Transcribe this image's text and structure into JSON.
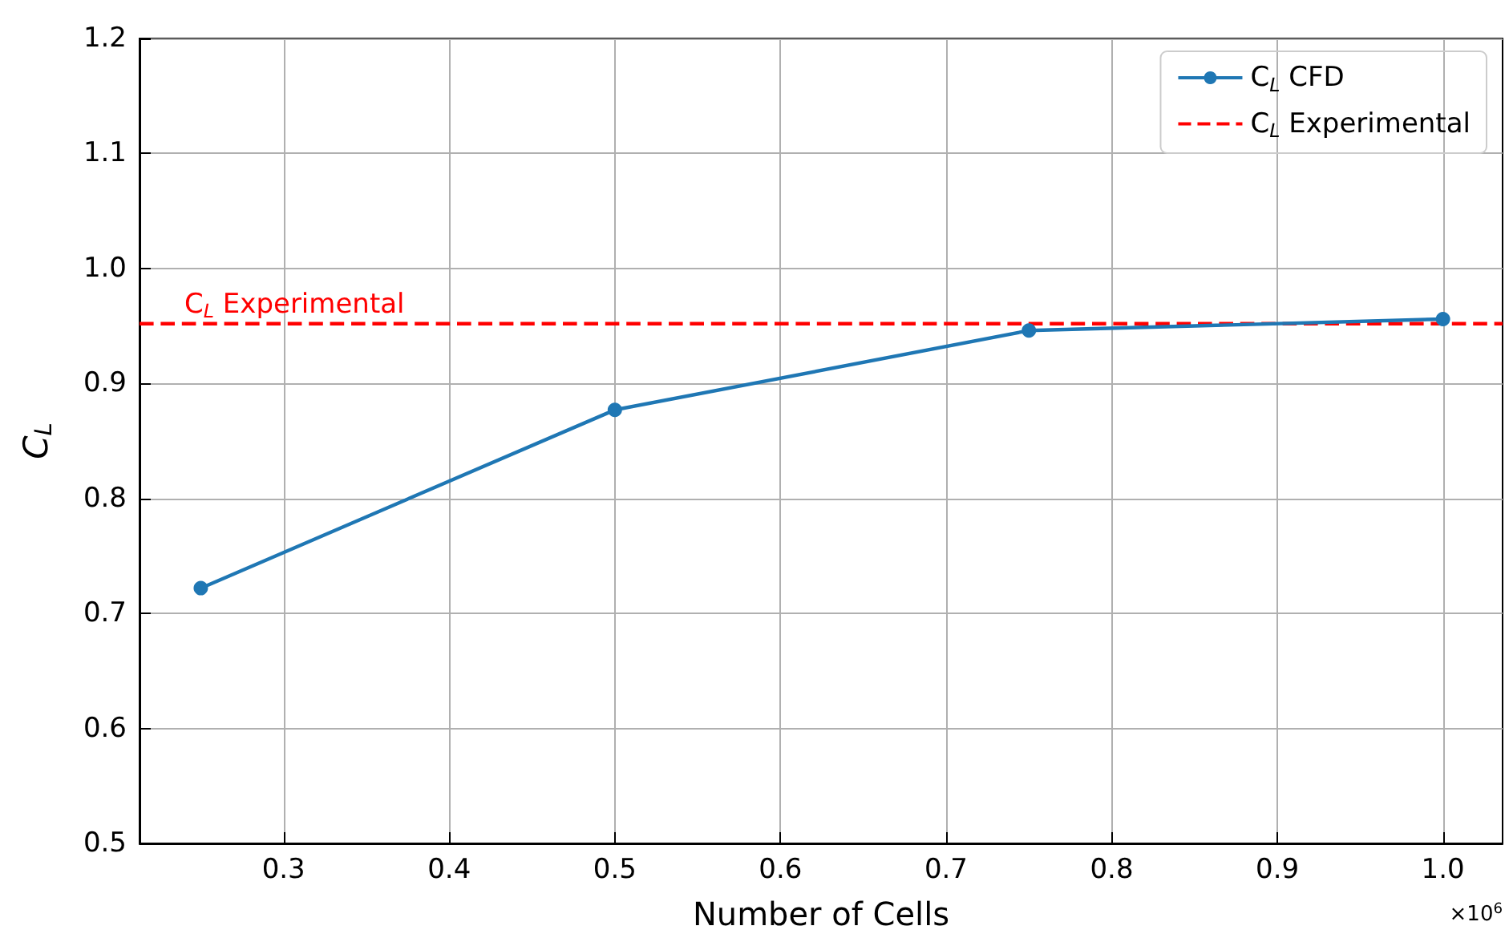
{
  "chart_data": {
    "type": "line",
    "xlabel": "Number of Cells",
    "ylabel": "C$_{L}$",
    "x": [
      0.25,
      0.5,
      0.75,
      1.0
    ],
    "series": [
      {
        "name": "C$_{L}$ CFD",
        "color": "#1f77b4",
        "values": [
          0.722,
          0.877,
          0.946,
          0.956
        ]
      }
    ],
    "ref_lines": [
      {
        "axis": "y",
        "value": 0.952,
        "label": "C$_{L}$ Experimental",
        "color": "#ff0000",
        "line_style": "dashed"
      }
    ],
    "annotations": [
      "×10$^{6}$"
    ],
    "xlim": [
      0.213,
      1.036
    ],
    "xticks": [
      0.3,
      0.4,
      0.5,
      0.6,
      0.7,
      0.8,
      0.9,
      {
        "value": 1,
        "label": "1.0"
      }
    ],
    "ylim": [
      0.5,
      1.2
    ],
    "yticks": [
      0.5,
      0.6,
      0.7,
      0.8,
      0.9,
      {
        "value": 1,
        "label": "1.0"
      },
      1.1,
      1.2
    ],
    "grid": true,
    "legend": "top right",
    "marker": "circle",
    "line_style": "solid"
  }
}
